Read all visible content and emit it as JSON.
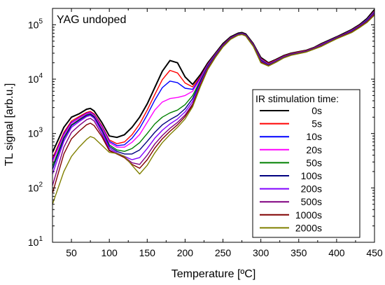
{
  "chart_data": {
    "type": "line",
    "annotation": "YAG undoped",
    "xlabel": "Temperature [ºC]",
    "ylabel": "TL signal [arb.u.]",
    "xlim": [
      25,
      450
    ],
    "ylim": [
      10,
      200000
    ],
    "yscale": "log",
    "x_ticks": [
      50,
      100,
      150,
      200,
      250,
      300,
      350,
      400,
      450
    ],
    "y_ticks": [
      {
        "value": 10,
        "label_base": "10",
        "label_exp": "1"
      },
      {
        "value": 100,
        "label_base": "10",
        "label_exp": "2"
      },
      {
        "value": 1000,
        "label_base": "10",
        "label_exp": "3"
      },
      {
        "value": 10000,
        "label_base": "10",
        "label_exp": "4"
      },
      {
        "value": 100000,
        "label_base": "10",
        "label_exp": "5"
      }
    ],
    "grid": false,
    "legend": {
      "title": "IR stimulation time:",
      "position": "right"
    },
    "x": [
      25,
      40,
      50,
      60,
      70,
      75,
      80,
      90,
      100,
      110,
      120,
      130,
      140,
      150,
      160,
      170,
      180,
      190,
      200,
      210,
      220,
      230,
      240,
      250,
      260,
      270,
      275,
      280,
      290,
      300,
      310,
      320,
      330,
      340,
      350,
      360,
      370,
      380,
      390,
      400,
      410,
      420,
      430,
      440,
      450
    ],
    "series": [
      {
        "name": "0s",
        "color": "#000000",
        "values": [
          450,
          1300,
          2000,
          2300,
          2800,
          2900,
          2600,
          1600,
          900,
          850,
          950,
          1300,
          2000,
          3500,
          7000,
          14000,
          22000,
          20000,
          11000,
          8000,
          12000,
          20000,
          30000,
          45000,
          60000,
          70000,
          72000,
          68000,
          45000,
          25000,
          20000,
          23000,
          27000,
          30000,
          32000,
          34000,
          38000,
          45000,
          52000,
          60000,
          70000,
          82000,
          100000,
          130000,
          190000
        ]
      },
      {
        "name": "5s",
        "color": "#ff0000",
        "values": [
          350,
          1050,
          1700,
          2050,
          2450,
          2550,
          2300,
          1400,
          760,
          650,
          700,
          950,
          1500,
          2700,
          5200,
          9800,
          14500,
          13000,
          8500,
          7200,
          11000,
          19000,
          29000,
          43000,
          58000,
          68000,
          70000,
          66000,
          44000,
          24000,
          19500,
          22500,
          26500,
          29500,
          31500,
          33500,
          37500,
          44000,
          51000,
          59000,
          68000,
          80000,
          97000,
          125000,
          180000
        ]
      },
      {
        "name": "10s",
        "color": "#0000ff",
        "values": [
          320,
          980,
          1600,
          1950,
          2350,
          2450,
          2200,
          1350,
          720,
          600,
          620,
          820,
          1250,
          2200,
          4100,
          7000,
          9200,
          8600,
          6800,
          6500,
          10500,
          18500,
          28500,
          42500,
          57500,
          67500,
          69500,
          65500,
          43500,
          23500,
          19000,
          22000,
          26000,
          29000,
          31000,
          33000,
          37000,
          43500,
          50500,
          58500,
          67500,
          79000,
          96000,
          124000,
          175000
        ]
      },
      {
        "name": "20s",
        "color": "#ff00ff",
        "values": [
          300,
          930,
          1550,
          1900,
          2300,
          2400,
          2150,
          1300,
          680,
          560,
          560,
          690,
          960,
          1600,
          2700,
          3800,
          4400,
          4600,
          5000,
          6000,
          10000,
          18000,
          28000,
          42000,
          57000,
          67000,
          69000,
          65000,
          43000,
          23000,
          18800,
          21800,
          25800,
          28800,
          30800,
          32800,
          36800,
          43000,
          50000,
          58000,
          67000,
          78000,
          95000,
          122000,
          172000
        ]
      },
      {
        "name": "50s",
        "color": "#008000",
        "values": [
          250,
          850,
          1450,
          1800,
          2200,
          2300,
          2050,
          1200,
          620,
          500,
          470,
          530,
          680,
          1000,
          1500,
          2000,
          2400,
          2700,
          3400,
          5000,
          9300,
          17500,
          27500,
          41500,
          56500,
          66500,
          68500,
          64500,
          42500,
          22500,
          18500,
          21500,
          25500,
          28500,
          30500,
          32500,
          36500,
          42500,
          49500,
          57500,
          66500,
          77000,
          94000,
          120000,
          168000
        ]
      },
      {
        "name": "100s",
        "color": "#000080",
        "values": [
          220,
          800,
          1400,
          1750,
          2150,
          2250,
          2000,
          1150,
          580,
          470,
          420,
          420,
          500,
          720,
          1050,
          1450,
          1800,
          2150,
          2850,
          4400,
          8800,
          17000,
          27000,
          41000,
          56000,
          66000,
          68000,
          64000,
          42000,
          22000,
          18200,
          21200,
          25200,
          28200,
          30200,
          32200,
          36200,
          42000,
          49000,
          57000,
          66000,
          76000,
          93000,
          118000,
          165000
        ]
      },
      {
        "name": "200s",
        "color": "#8000ff",
        "values": [
          180,
          720,
          1300,
          1650,
          2050,
          2150,
          1900,
          1080,
          540,
          440,
          380,
          330,
          360,
          530,
          820,
          1150,
          1500,
          1850,
          2500,
          3900,
          8300,
          16500,
          26500,
          40500,
          55500,
          65500,
          67500,
          63500,
          41500,
          21500,
          18000,
          21000,
          25000,
          28000,
          30000,
          32000,
          36000,
          41500,
          48500,
          56500,
          65500,
          75000,
          92000,
          116000,
          162000
        ]
      },
      {
        "name": "500s",
        "color": "#800080",
        "values": [
          110,
          560,
          1050,
          1400,
          1800,
          1900,
          1700,
          960,
          500,
          420,
          370,
          290,
          270,
          400,
          640,
          920,
          1250,
          1600,
          2200,
          3500,
          7800,
          16000,
          26000,
          40000,
          55000,
          65000,
          67000,
          63000,
          41000,
          21000,
          17800,
          20800,
          24800,
          27800,
          29800,
          31800,
          35800,
          41000,
          48000,
          56000,
          65000,
          74000,
          91000,
          114000,
          158000
        ]
      },
      {
        "name": "1000s",
        "color": "#800000",
        "values": [
          80,
          420,
          800,
          1100,
          1450,
          1550,
          1400,
          880,
          480,
          420,
          360,
          270,
          230,
          330,
          540,
          800,
          1100,
          1450,
          2050,
          3300,
          7500,
          15500,
          25500,
          39500,
          54500,
          64500,
          66500,
          62500,
          40500,
          20500,
          17600,
          20600,
          24600,
          27600,
          29600,
          31600,
          35600,
          40500,
          47500,
          55500,
          64000,
          73000,
          90000,
          112000,
          154000
        ]
      },
      {
        "name": "2000s",
        "color": "#808000",
        "values": [
          50,
          200,
          380,
          560,
          780,
          880,
          830,
          610,
          450,
          430,
          380,
          260,
          180,
          260,
          440,
          680,
          960,
          1300,
          1850,
          3100,
          7200,
          15000,
          25000,
          39000,
          54000,
          64000,
          66000,
          62000,
          40000,
          20000,
          17400,
          20400,
          24400,
          27400,
          29400,
          31400,
          35400,
          40000,
          47000,
          55000,
          63000,
          72000,
          88000,
          110000,
          150000
        ]
      }
    ]
  }
}
